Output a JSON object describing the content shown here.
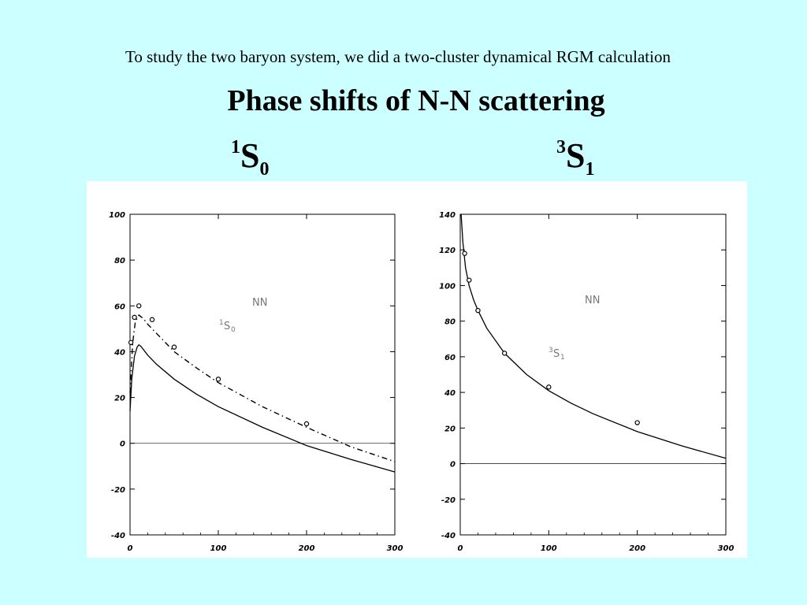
{
  "slide": {
    "intro": "To study the two baryon system, we did a two-cluster dynamical RGM calculation",
    "title": "Phase shifts of N-N scattering",
    "left_label": {
      "sup": "1",
      "main": "S",
      "sub": "0"
    },
    "right_label": {
      "sup": "3",
      "main": "S",
      "sub": "1"
    }
  },
  "chart_data": [
    {
      "type": "line",
      "annotation": {
        "text": "NN",
        "sup": "1",
        "main": "S",
        "sub": "0"
      },
      "xlim": [
        0,
        300
      ],
      "ylim": [
        -40,
        100
      ],
      "x_ticks": [
        0,
        100,
        200,
        300
      ],
      "y_ticks": [
        -40,
        -20,
        0,
        20,
        40,
        60,
        80,
        100
      ],
      "y_tick_labels": [
        "-40",
        "-20",
        "0",
        "20",
        "40",
        "60",
        "80",
        "100"
      ],
      "series": [
        {
          "style": "solid",
          "x": [
            0,
            2,
            5,
            8,
            10,
            12,
            15,
            20,
            30,
            50,
            75,
            100,
            150,
            200,
            250,
            300
          ],
          "y": [
            14,
            28,
            38,
            42,
            43,
            42.5,
            41,
            38.5,
            34.5,
            28,
            21.5,
            16,
            7,
            -1,
            -7,
            -12.5
          ]
        },
        {
          "style": "dashdot",
          "x": [
            0,
            3,
            6,
            10,
            15,
            20,
            30,
            50,
            75,
            100,
            150,
            200,
            250,
            300
          ],
          "y": [
            22,
            44,
            53,
            56,
            54.5,
            52,
            48,
            40,
            33,
            26.5,
            16,
            7,
            -1.5,
            -8
          ]
        },
        {
          "style": "points",
          "x": [
            1,
            5,
            10,
            25,
            50,
            100,
            200
          ],
          "y": [
            44,
            55,
            60,
            54,
            42,
            28,
            8.5
          ]
        }
      ]
    },
    {
      "type": "line",
      "annotation": {
        "text": "NN",
        "sup": "3",
        "main": "S",
        "sub": "1"
      },
      "xlim": [
        0,
        300
      ],
      "ylim": [
        -40,
        140
      ],
      "x_ticks": [
        0,
        100,
        200,
        300
      ],
      "y_ticks": [
        -40,
        -20,
        0,
        20,
        40,
        60,
        80,
        100,
        120,
        140
      ],
      "y_tick_labels": [
        "-40",
        "-20",
        "0",
        "20",
        "40",
        "60",
        "80",
        "100",
        "120",
        "140"
      ],
      "series": [
        {
          "style": "solid",
          "x": [
            1,
            3,
            6,
            10,
            15,
            20,
            30,
            50,
            75,
            100,
            125,
            150,
            200,
            250,
            300
          ],
          "y": [
            140,
            124,
            110,
            100,
            92,
            86,
            76,
            62,
            50,
            41,
            34,
            28,
            18,
            10,
            3
          ]
        },
        {
          "style": "points",
          "x": [
            5,
            10,
            20,
            50,
            100,
            200
          ],
          "y": [
            118,
            103,
            86,
            62,
            43,
            23
          ]
        }
      ]
    }
  ]
}
